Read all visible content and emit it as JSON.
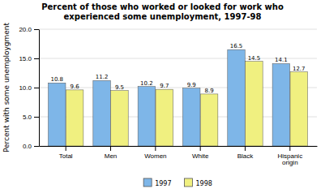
{
  "chart_data": {
    "type": "bar",
    "title": "Percent of those who worked or looked for work who\nexperienced some unemployment, 1997-98",
    "categories": [
      "Total",
      "Men",
      "Women",
      "White",
      "Black",
      "Hispanic\norigin"
    ],
    "series": [
      {
        "name": "1997",
        "color": "#7EB6E8",
        "values": [
          10.8,
          11.2,
          10.2,
          9.9,
          16.5,
          14.1
        ]
      },
      {
        "name": "1998",
        "color": "#F0F080",
        "values": [
          9.6,
          9.5,
          9.7,
          8.9,
          14.5,
          12.7
        ]
      }
    ],
    "ylabel": "Percent with some unemploygment",
    "ylim": [
      0,
      20.0
    ],
    "yticks": [
      {
        "value": 0.0,
        "label": "0.0"
      },
      {
        "value": 5.0,
        "label": "5.0"
      },
      {
        "value": 10.0,
        "label": "10.0"
      },
      {
        "value": 15.0,
        "label": "15.0"
      },
      {
        "value": 20.0,
        "label": "20.0"
      }
    ],
    "grid": true,
    "data_labels": true,
    "legend": "bottom"
  }
}
